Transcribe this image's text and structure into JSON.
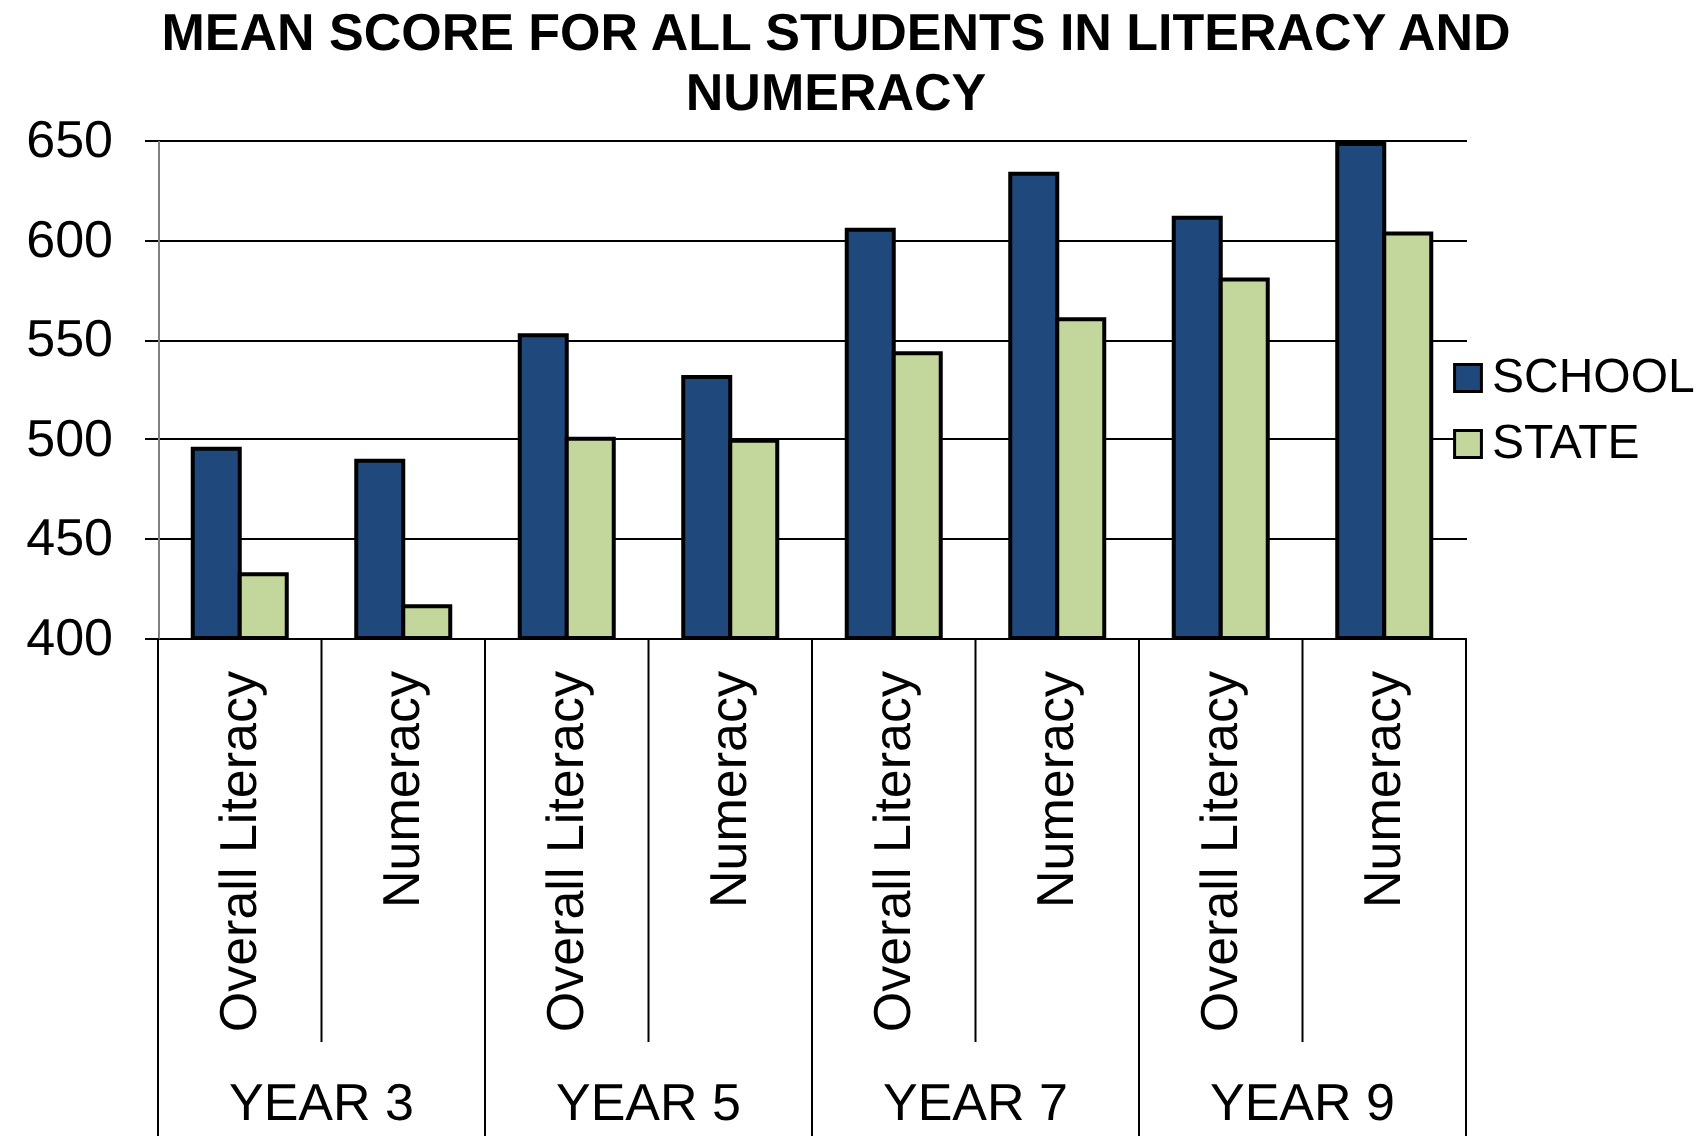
{
  "chart_data": {
    "type": "bar",
    "title": "MEAN SCORE FOR ALL STUDENTS IN LITERACY AND NUMERACY",
    "categories": [
      "Overall Literacy",
      "Numeracy",
      "Overall Literacy",
      "Numeracy",
      "Overall Literacy",
      "Numeracy",
      "Overall Literacy",
      "Numeracy"
    ],
    "annotations": [
      "YEAR 3",
      "YEAR 5",
      "YEAR 7",
      "YEAR 9"
    ],
    "series": [
      {
        "name": "SCHOOL",
        "color": "#1f497d",
        "values": [
          495,
          489,
          552,
          531,
          605,
          633,
          611,
          648
        ]
      },
      {
        "name": "STATE",
        "color": "#c3d69b",
        "values": [
          432,
          416,
          500,
          499,
          543,
          560,
          580,
          603
        ]
      }
    ],
    "ylim": [
      400,
      650
    ],
    "yticks": [
      400,
      450,
      500,
      550,
      600,
      650
    ],
    "grid": "y",
    "legend": "right"
  }
}
